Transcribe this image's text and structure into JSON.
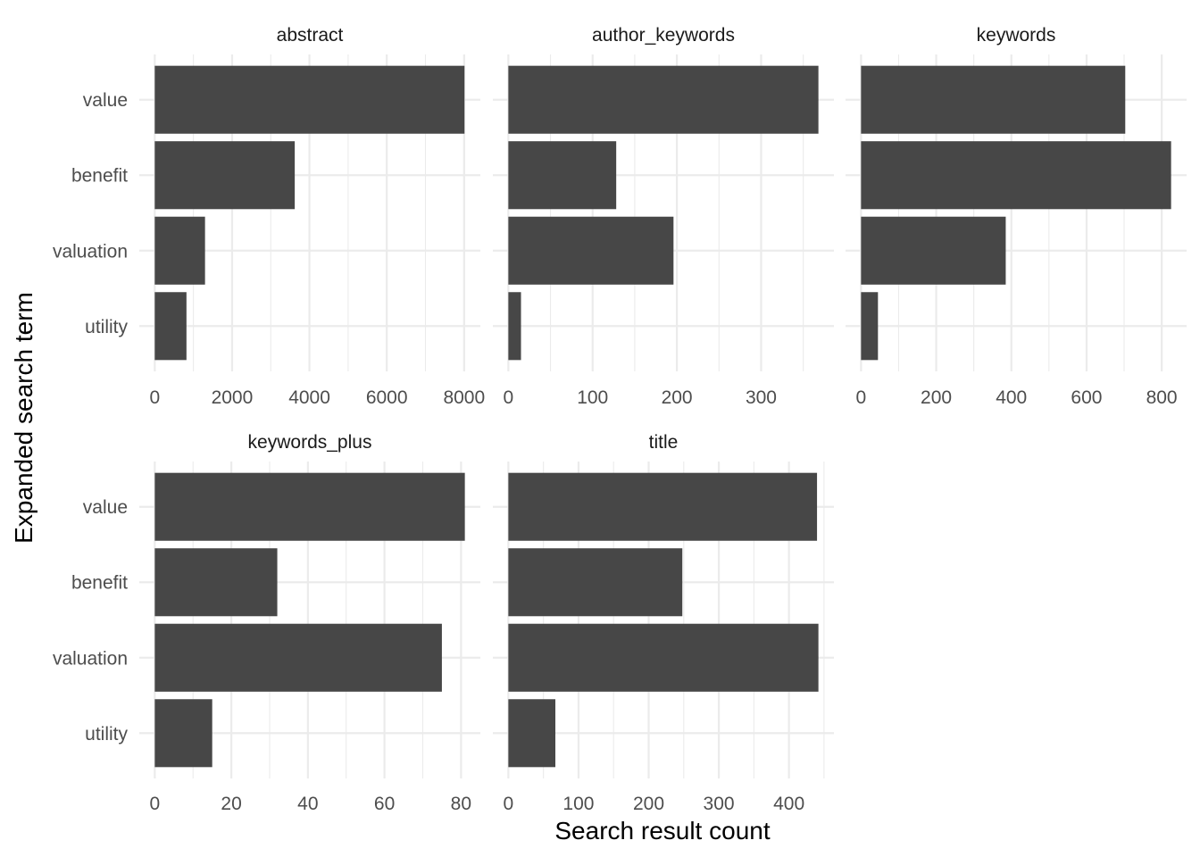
{
  "chart_data": {
    "type": "bar",
    "orientation": "horizontal",
    "layout": "facet_wrap",
    "xlabel": "Search result count",
    "ylabel": "Expanded search term",
    "grid": true,
    "categories": [
      "value",
      "benefit",
      "valuation",
      "utility"
    ],
    "panels": [
      {
        "name": "abstract",
        "values": [
          8010,
          3620,
          1300,
          820
        ],
        "xlim": [
          -400,
          8420
        ],
        "ticks": [
          0,
          2000,
          4000,
          6000,
          8000
        ]
      },
      {
        "name": "author_keywords",
        "values": [
          368,
          128,
          196,
          15
        ],
        "xlim": [
          -18.4,
          386.4
        ],
        "ticks": [
          0,
          100,
          200,
          300
        ]
      },
      {
        "name": "keywords",
        "values": [
          703,
          825,
          385,
          45
        ],
        "xlim": [
          -41.25,
          866.25
        ],
        "ticks": [
          0,
          200,
          400,
          600,
          800
        ]
      },
      {
        "name": "keywords_plus",
        "values": [
          81,
          32,
          75,
          15
        ],
        "xlim": [
          -4.05,
          85.05
        ],
        "ticks": [
          0,
          20,
          40,
          60,
          80
        ]
      },
      {
        "name": "title",
        "values": [
          440,
          248,
          442,
          67
        ],
        "xlim": [
          -22.1,
          464.1
        ],
        "ticks": [
          0,
          100,
          200,
          300,
          400
        ]
      }
    ]
  }
}
